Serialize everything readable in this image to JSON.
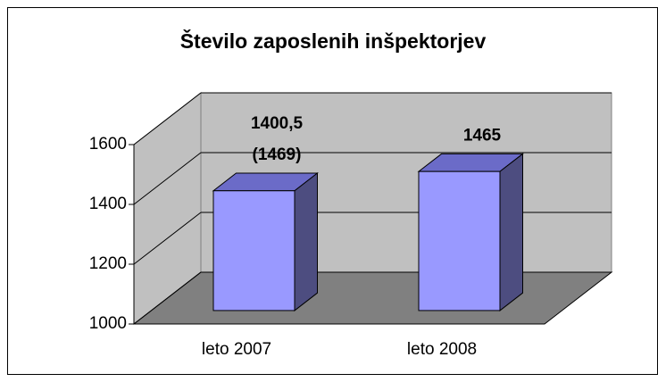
{
  "chart_data": {
    "type": "bar3d",
    "title": "Število zaposlenih inšpektorjev",
    "categories": [
      "leto 2007",
      "leto 2008"
    ],
    "values": [
      1400.5,
      1465
    ],
    "value_labels": [
      "1400,5",
      "1465"
    ],
    "annotation": "(1469)",
    "color": "#9999ff",
    "ylim": [
      1000,
      1600
    ],
    "yticks": [
      1000,
      1200,
      1400,
      1600
    ],
    "grid": true
  }
}
